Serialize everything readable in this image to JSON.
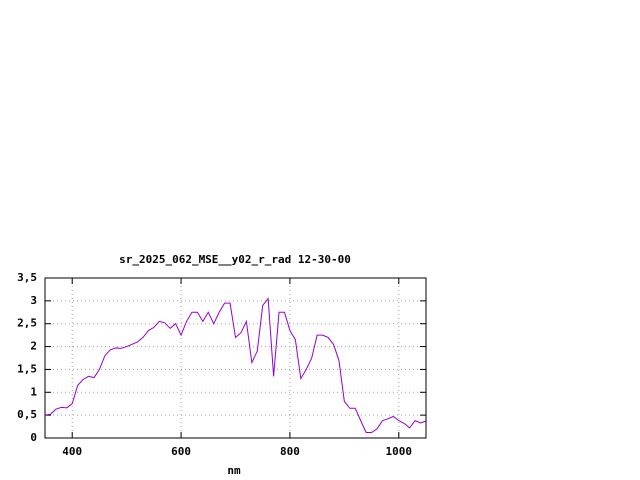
{
  "chart_data": {
    "type": "line",
    "title": "sr_2025_062_MSE__y02_r_rad 12-30-00",
    "x_label": "nm",
    "x": [
      350,
      360,
      370,
      380,
      390,
      400,
      410,
      420,
      430,
      440,
      450,
      460,
      470,
      480,
      490,
      500,
      510,
      520,
      530,
      540,
      550,
      560,
      570,
      580,
      590,
      600,
      610,
      620,
      630,
      640,
      650,
      660,
      670,
      680,
      690,
      700,
      710,
      720,
      730,
      740,
      750,
      760,
      770,
      780,
      790,
      800,
      810,
      820,
      830,
      840,
      850,
      860,
      870,
      880,
      890,
      900,
      910,
      920,
      930,
      940,
      950,
      960,
      970,
      980,
      990,
      1000,
      1010,
      1020,
      1030,
      1040,
      1050
    ],
    "series": [
      {
        "color": "#9400d3",
        "values": [
          0.5,
          0.52,
          0.63,
          0.67,
          0.66,
          0.75,
          1.15,
          1.28,
          1.35,
          1.32,
          1.5,
          1.8,
          1.93,
          1.97,
          1.96,
          2.0,
          2.05,
          2.1,
          2.2,
          2.35,
          2.42,
          2.55,
          2.52,
          2.4,
          2.5,
          2.25,
          2.55,
          2.75,
          2.75,
          2.55,
          2.75,
          2.5,
          2.75,
          2.95,
          2.95,
          2.2,
          2.3,
          2.55,
          1.65,
          1.9,
          2.9,
          3.05,
          1.35,
          2.75,
          2.75,
          2.35,
          2.15,
          1.3,
          1.5,
          1.75,
          2.25,
          2.25,
          2.2,
          2.05,
          1.7,
          0.8,
          0.65,
          0.65,
          0.38,
          0.12,
          0.12,
          0.2,
          0.38,
          0.42,
          0.47,
          0.38,
          0.32,
          0.22,
          0.38,
          0.33,
          0.37
        ]
      }
    ],
    "xlim": [
      350,
      1050
    ],
    "xticks": [
      400,
      600,
      800,
      1000
    ],
    "ylim": [
      0,
      3.5
    ],
    "yticks": [
      0,
      {
        "value": 0.5,
        "label": "0,5"
      },
      1,
      {
        "value": 1.5,
        "label": "1,5"
      },
      2,
      {
        "value": 2.5,
        "label": "2,5"
      },
      3,
      {
        "value": 3.5,
        "label": "3,5"
      }
    ],
    "grid": true
  }
}
